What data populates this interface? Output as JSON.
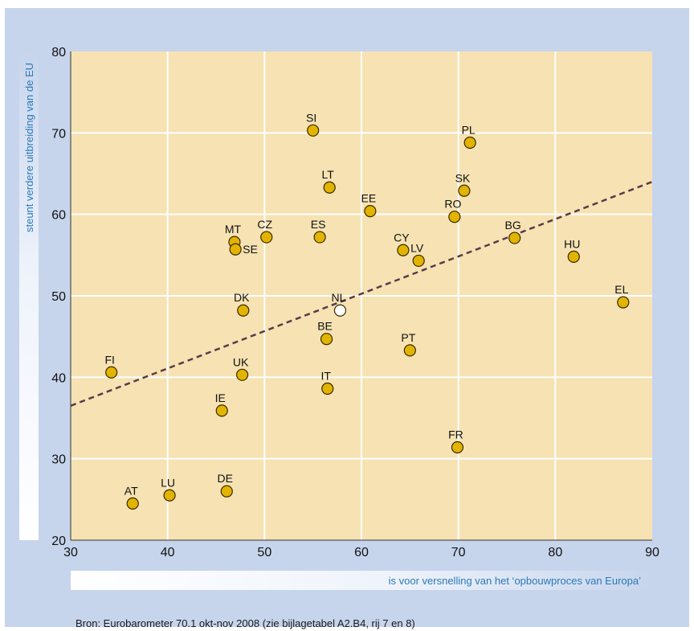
{
  "chart_data": {
    "type": "scatter",
    "title": "",
    "xlabel": "is voor versnelling van het ‘opbouwproces van Europa’",
    "ylabel": "steunt verdere uitbreiding van de EU",
    "xlim": [
      30,
      90
    ],
    "ylim": [
      20,
      80
    ],
    "x_ticks": [
      30,
      40,
      50,
      60,
      70,
      80,
      90
    ],
    "y_ticks": [
      20,
      30,
      40,
      50,
      60,
      70,
      80
    ],
    "grid": true,
    "points": [
      {
        "label": "SI",
        "x": 55.0,
        "y": 70.3
      },
      {
        "label": "PL",
        "x": 71.2,
        "y": 68.8
      },
      {
        "label": "LT",
        "x": 56.7,
        "y": 63.3
      },
      {
        "label": "SK",
        "x": 70.6,
        "y": 62.9
      },
      {
        "label": "EE",
        "x": 60.9,
        "y": 60.4
      },
      {
        "label": "RO",
        "x": 69.6,
        "y": 59.7
      },
      {
        "label": "CZ",
        "x": 50.2,
        "y": 57.2
      },
      {
        "label": "ES",
        "x": 55.7,
        "y": 57.2
      },
      {
        "label": "BG",
        "x": 75.8,
        "y": 57.1
      },
      {
        "label": "MT",
        "x": 46.9,
        "y": 56.6
      },
      {
        "label": "SE",
        "x": 47.0,
        "y": 55.7
      },
      {
        "label": "CY",
        "x": 64.3,
        "y": 55.6
      },
      {
        "label": "HU",
        "x": 81.9,
        "y": 54.8
      },
      {
        "label": "LV",
        "x": 65.9,
        "y": 54.3
      },
      {
        "label": "EL",
        "x": 87.0,
        "y": 49.2
      },
      {
        "label": "NL",
        "x": 57.8,
        "y": 48.2,
        "highlight": true
      },
      {
        "label": "DK",
        "x": 47.8,
        "y": 48.2
      },
      {
        "label": "BE",
        "x": 56.4,
        "y": 44.7
      },
      {
        "label": "PT",
        "x": 65.0,
        "y": 43.3
      },
      {
        "label": "FI",
        "x": 34.2,
        "y": 40.6
      },
      {
        "label": "UK",
        "x": 47.7,
        "y": 40.3
      },
      {
        "label": "IT",
        "x": 56.5,
        "y": 38.6
      },
      {
        "label": "IE",
        "x": 45.6,
        "y": 35.9
      },
      {
        "label": "FR",
        "x": 69.9,
        "y": 31.4
      },
      {
        "label": "DE",
        "x": 46.1,
        "y": 26.0
      },
      {
        "label": "LU",
        "x": 40.2,
        "y": 25.5
      },
      {
        "label": "AT",
        "x": 36.4,
        "y": 24.5
      }
    ],
    "trendline": {
      "x": [
        30,
        90
      ],
      "y": [
        36.5,
        64.0
      ]
    },
    "colors": {
      "background": "#c6d4ec",
      "plot_area": "#f6e2b2",
      "point_fill": "#e2b400",
      "point_highlight_fill": "#ffffff",
      "point_stroke": "#3a2a00",
      "trendline": "#5a3a4a",
      "axis_label": "#2a7ab8"
    }
  },
  "source_note": "Bron: Eurobarometer 70.1 okt-nov 2008 (zie bijlagetabel A2.B4, rij 7 en 8)"
}
